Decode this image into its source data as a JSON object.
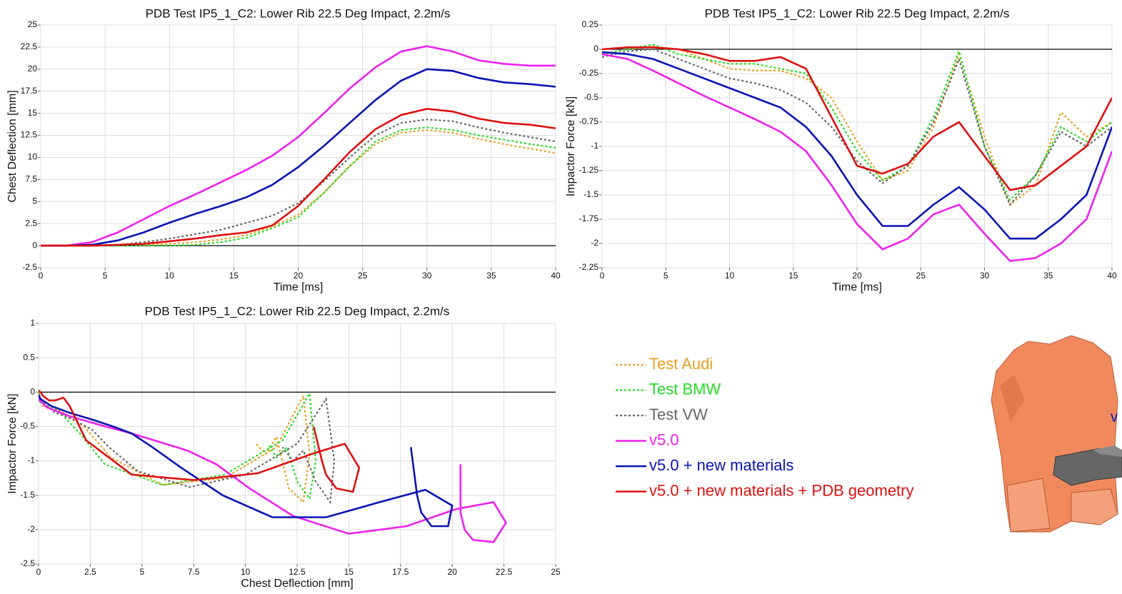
{
  "chart_data": [
    {
      "type": "line",
      "title": "PDB Test IP5_1_C2: Lower Rib 22.5 Deg Impact, 2.2m/s",
      "x_label": "Time [ms]",
      "y_label": "Chest Deflection [mm]",
      "xlim": [
        0,
        40
      ],
      "xticks": [
        0,
        5,
        10,
        15,
        20,
        25,
        30,
        35,
        40
      ],
      "ylim": [
        -2.5,
        25
      ],
      "yticks": [
        -2.5,
        0,
        2.5,
        5,
        7.5,
        10,
        12.5,
        15,
        17.5,
        20,
        22.5,
        25
      ],
      "grid": true,
      "x": [
        0,
        2,
        4,
        6,
        8,
        10,
        12,
        14,
        16,
        18,
        20,
        22,
        24,
        26,
        28,
        30,
        32,
        34,
        36,
        38,
        40
      ],
      "series": [
        {
          "name": "Test Audi",
          "color": "#e8a020",
          "dash": true,
          "values": [
            0,
            0,
            0,
            0,
            0.1,
            0.2,
            0.4,
            0.7,
            1.2,
            2.2,
            3.5,
            6,
            9,
            11.5,
            12.8,
            13.1,
            12.8,
            12.1,
            11.5,
            11,
            10.5
          ]
        },
        {
          "name": "Test BMW",
          "color": "#22dd22",
          "dash": true,
          "values": [
            0,
            0,
            0,
            0,
            0,
            0,
            0.1,
            0.4,
            0.9,
            2,
            3.2,
            6,
            9,
            11.8,
            13.1,
            13.4,
            13.1,
            12.5,
            12,
            11.5,
            11.1
          ]
        },
        {
          "name": "Test VW",
          "color": "#666666",
          "dash": true,
          "values": [
            0,
            0,
            0,
            0.1,
            0.4,
            0.8,
            1.3,
            1.8,
            2.6,
            3.4,
            4.8,
            7.3,
            10,
            12.5,
            13.9,
            14.3,
            14.1,
            13.4,
            12.8,
            12.3,
            11.8
          ]
        },
        {
          "name": "v5.0",
          "color": "#ee22ee",
          "dash": false,
          "values": [
            0,
            0,
            0.4,
            1.5,
            3,
            4.5,
            5.8,
            7.2,
            8.6,
            10.2,
            12.3,
            15,
            17.8,
            20.2,
            22,
            22.6,
            22,
            21,
            20.6,
            20.4,
            20.4
          ]
        },
        {
          "name": "v5.0 + new materials",
          "color": "#0a14b4",
          "dash": false,
          "values": [
            0,
            0,
            0.1,
            0.6,
            1.5,
            2.6,
            3.6,
            4.5,
            5.5,
            6.9,
            8.9,
            11.3,
            13.9,
            16.5,
            18.7,
            20,
            19.8,
            19,
            18.5,
            18.3,
            18
          ]
        },
        {
          "name": "v5.0 + new materials + PDB geometry",
          "color": "#dd1111",
          "dash": false,
          "values": [
            0,
            0,
            0,
            0.1,
            0.2,
            0.5,
            0.8,
            1.2,
            1.5,
            2.3,
            4.5,
            7.5,
            10.6,
            13.2,
            14.8,
            15.5,
            15.2,
            14.4,
            13.9,
            13.7,
            13.3
          ]
        }
      ]
    },
    {
      "type": "line",
      "title": "PDB Test IP5_1_C2: Lower Rib 22.5 Deg Impact, 2.2m/s",
      "x_label": "Time [ms]",
      "y_label": "Impactor Force [kN]",
      "xlim": [
        0,
        40
      ],
      "xticks": [
        0,
        5,
        10,
        15,
        20,
        25,
        30,
        35,
        40
      ],
      "ylim": [
        -2.25,
        0.25
      ],
      "yticks": [
        -2.25,
        -2,
        -1.75,
        -1.5,
        -1.25,
        -1,
        -0.75,
        -0.5,
        -0.25,
        0,
        0.25
      ],
      "grid": true,
      "x": [
        0,
        2,
        4,
        6,
        8,
        10,
        12,
        14,
        16,
        18,
        20,
        22,
        24,
        26,
        28,
        30,
        32,
        34,
        36,
        38,
        40
      ],
      "series": [
        {
          "color": "#e8a020",
          "dash": true,
          "values": [
            -0.05,
            0,
            0.03,
            0,
            -0.1,
            -0.2,
            -0.22,
            -0.22,
            -0.3,
            -0.5,
            -0.95,
            -1.35,
            -1.25,
            -0.8,
            -0.05,
            -0.9,
            -1.6,
            -1.4,
            -0.65,
            -0.9,
            -0.75
          ]
        },
        {
          "color": "#22dd22",
          "dash": true,
          "values": [
            -0.05,
            0,
            0.05,
            -0.05,
            -0.1,
            -0.15,
            -0.15,
            -0.2,
            -0.25,
            -0.6,
            -1.05,
            -1.35,
            -1.2,
            -0.7,
            -0.02,
            -1,
            -1.55,
            -1.3,
            -0.8,
            -0.95,
            -0.75
          ]
        },
        {
          "color": "#666666",
          "dash": true,
          "values": [
            -0.08,
            -0.02,
            0,
            -0.1,
            -0.2,
            -0.3,
            -0.35,
            -0.42,
            -0.55,
            -0.8,
            -1.15,
            -1.38,
            -1.2,
            -0.75,
            -0.1,
            -1,
            -1.6,
            -1.3,
            -0.85,
            -1,
            -0.8
          ]
        },
        {
          "color": "#ee22ee",
          "dash": false,
          "values": [
            -0.05,
            -0.1,
            -0.22,
            -0.35,
            -0.48,
            -0.6,
            -0.72,
            -0.85,
            -1.05,
            -1.4,
            -1.8,
            -2.06,
            -1.95,
            -1.7,
            -1.6,
            -1.9,
            -2.18,
            -2.15,
            -2,
            -1.75,
            -1.05
          ]
        },
        {
          "color": "#0a14b4",
          "dash": false,
          "values": [
            -0.03,
            -0.05,
            -0.1,
            -0.2,
            -0.3,
            -0.4,
            -0.5,
            -0.6,
            -0.8,
            -1.1,
            -1.5,
            -1.82,
            -1.82,
            -1.6,
            -1.42,
            -1.65,
            -1.95,
            -1.95,
            -1.75,
            -1.5,
            -0.8
          ]
        },
        {
          "color": "#dd1111",
          "dash": false,
          "values": [
            0,
            0.02,
            0.02,
            0,
            -0.05,
            -0.12,
            -0.12,
            -0.08,
            -0.2,
            -0.7,
            -1.2,
            -1.28,
            -1.18,
            -0.9,
            -0.75,
            -1.1,
            -1.45,
            -1.4,
            -1.2,
            -1,
            -0.5
          ]
        }
      ]
    },
    {
      "type": "line",
      "title": "PDB Test IP5_1_C2: Lower Rib 22.5 Deg Impact, 2.2m/s",
      "x_label": "Chest Deflection [mm]",
      "y_label": "Impactor Force [kN]",
      "xlim": [
        0,
        25
      ],
      "xticks": [
        0,
        2.5,
        5,
        7.5,
        10,
        12.5,
        15,
        17.5,
        20,
        22.5,
        25
      ],
      "ylim": [
        -2.5,
        1
      ],
      "yticks": [
        -2.5,
        -2,
        -1.5,
        -1,
        -0.5,
        0,
        0.5,
        1
      ],
      "grid": true,
      "series": [
        {
          "color": "#e8a020",
          "dash": true,
          "x": [
            0,
            0,
            0,
            0,
            0.1,
            0.2,
            0.4,
            0.7,
            1.2,
            2.2,
            3.5,
            6,
            9,
            11.5,
            12.8,
            13.1,
            12.8,
            12.1,
            11.5,
            11,
            10.5
          ],
          "values": [
            -0.05,
            0,
            0.03,
            0,
            -0.1,
            -0.2,
            -0.22,
            -0.22,
            -0.3,
            -0.5,
            -0.95,
            -1.35,
            -1.25,
            -0.8,
            -0.05,
            -0.9,
            -1.6,
            -1.4,
            -0.65,
            -0.9,
            -0.75
          ]
        },
        {
          "color": "#22dd22",
          "dash": true,
          "x": [
            0,
            0,
            0,
            0,
            0,
            0,
            0.1,
            0.4,
            0.9,
            2,
            3.2,
            6,
            9,
            11.8,
            13.1,
            13.4,
            13.1,
            12.5,
            12,
            11.5,
            11.1
          ],
          "values": [
            -0.05,
            0,
            0.05,
            -0.05,
            -0.1,
            -0.15,
            -0.15,
            -0.2,
            -0.25,
            -0.6,
            -1.05,
            -1.35,
            -1.2,
            -0.7,
            -0.02,
            -1,
            -1.55,
            -1.3,
            -0.8,
            -0.95,
            -0.75
          ]
        },
        {
          "color": "#666666",
          "dash": true,
          "x": [
            0,
            0,
            0,
            0.1,
            0.4,
            0.8,
            1.3,
            1.8,
            2.6,
            3.4,
            4.8,
            7.3,
            10,
            12.5,
            13.9,
            14.3,
            14.1,
            13.4,
            12.8,
            12.3,
            11.8
          ],
          "values": [
            -0.08,
            -0.02,
            0,
            -0.1,
            -0.2,
            -0.3,
            -0.35,
            -0.42,
            -0.55,
            -0.8,
            -1.15,
            -1.38,
            -1.2,
            -0.75,
            -0.1,
            -1,
            -1.6,
            -1.3,
            -0.85,
            -1,
            -0.8
          ]
        },
        {
          "color": "#ee22ee",
          "dash": false,
          "x": [
            0,
            0,
            0.4,
            1.5,
            3,
            4.5,
            5.8,
            7.2,
            8.6,
            10.2,
            12.3,
            15,
            17.8,
            20.2,
            22,
            22.6,
            22,
            21,
            20.6,
            20.4,
            20.4
          ],
          "values": [
            -0.05,
            -0.1,
            -0.22,
            -0.35,
            -0.48,
            -0.6,
            -0.72,
            -0.85,
            -1.05,
            -1.4,
            -1.8,
            -2.06,
            -1.95,
            -1.7,
            -1.6,
            -1.9,
            -2.18,
            -2.15,
            -2,
            -1.75,
            -1.05
          ]
        },
        {
          "color": "#0a14b4",
          "dash": false,
          "x": [
            0,
            0,
            0.1,
            0.6,
            1.5,
            2.6,
            3.6,
            4.5,
            5.5,
            6.9,
            8.9,
            11.3,
            13.9,
            16.5,
            18.7,
            20,
            19.8,
            19,
            18.5,
            18.3,
            18
          ],
          "values": [
            -0.03,
            -0.05,
            -0.1,
            -0.2,
            -0.3,
            -0.4,
            -0.5,
            -0.6,
            -0.8,
            -1.1,
            -1.5,
            -1.82,
            -1.82,
            -1.6,
            -1.42,
            -1.65,
            -1.95,
            -1.95,
            -1.75,
            -1.5,
            -0.8
          ]
        },
        {
          "color": "#dd1111",
          "dash": false,
          "x": [
            0,
            0,
            0,
            0.1,
            0.2,
            0.5,
            0.8,
            1.2,
            1.5,
            2.3,
            4.5,
            7.5,
            10.6,
            13.2,
            14.8,
            15.5,
            15.2,
            14.4,
            13.9,
            13.7,
            13.3
          ],
          "values": [
            0,
            0.02,
            0.02,
            0,
            -0.05,
            -0.12,
            -0.12,
            -0.08,
            -0.2,
            -0.7,
            -1.2,
            -1.28,
            -1.18,
            -0.9,
            -0.75,
            -1.1,
            -1.45,
            -1.4,
            -1.2,
            -1,
            -0.5
          ]
        }
      ]
    }
  ],
  "figure": {
    "label": "v"
  }
}
